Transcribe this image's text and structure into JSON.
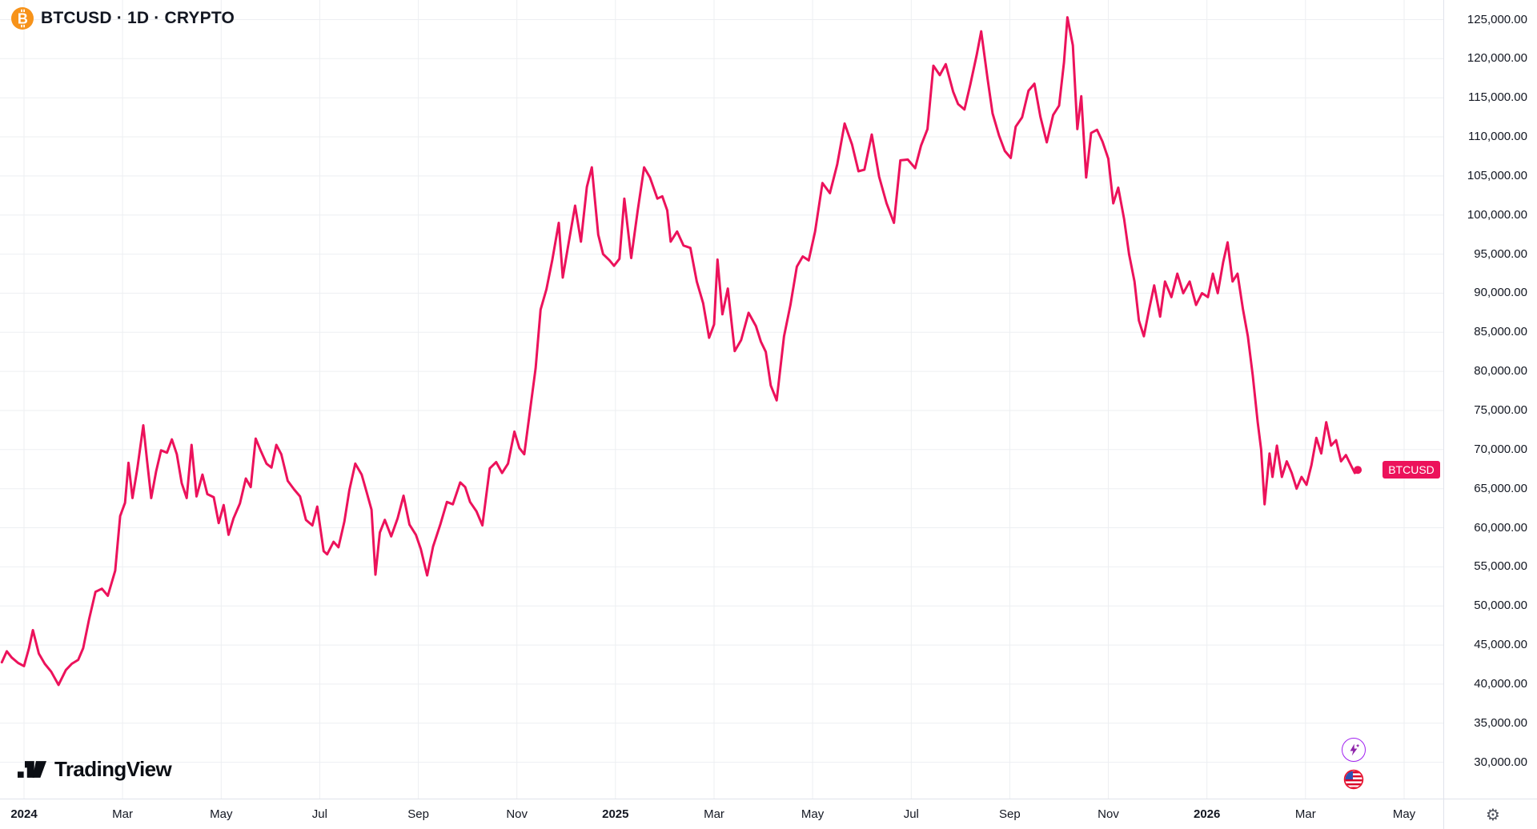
{
  "header": {
    "symbol_title": "BTCUSD · 1D · CRYPTO"
  },
  "logo": {
    "text": "TradingView"
  },
  "icons": {
    "bitcoin": "bitcoin-icon",
    "ai_sparkle": "lightning-sparkle-icon",
    "flag": "us-flag-icon",
    "gear": "gear-icon",
    "gear_glyph": "⚙"
  },
  "colors": {
    "line": "#EC125B",
    "grid": "#EDEFF2",
    "axis_border": "#E0E3EB",
    "text": "#131722",
    "bitcoin_orange": "#F7931A",
    "badge_text": "#FFFFFF",
    "sparkle_purple": "#8E24AA",
    "flag_red": "#E8112D"
  },
  "chart_data": {
    "type": "line",
    "title": "BTCUSD · 1D · CRYPTO",
    "symbol": "BTCUSD",
    "interval": "1D",
    "market": "CRYPTO",
    "x_unit": "months since Jan 2024",
    "grid": true,
    "ylim": [
      30000,
      125000
    ],
    "y_ticks": [
      {
        "value": 125000,
        "label": "125,000.00"
      },
      {
        "value": 120000,
        "label": "120,000.00"
      },
      {
        "value": 115000,
        "label": "115,000.00"
      },
      {
        "value": 110000,
        "label": "110,000.00"
      },
      {
        "value": 105000,
        "label": "105,000.00"
      },
      {
        "value": 100000,
        "label": "100,000.00"
      },
      {
        "value": 95000,
        "label": "95,000.00"
      },
      {
        "value": 90000,
        "label": "90,000.00"
      },
      {
        "value": 85000,
        "label": "85,000.00"
      },
      {
        "value": 80000,
        "label": "80,000.00"
      },
      {
        "value": 75000,
        "label": "75,000.00"
      },
      {
        "value": 70000,
        "label": "70,000.00"
      },
      {
        "value": 65000,
        "label": "65,000.00"
      },
      {
        "value": 60000,
        "label": "60,000.00"
      },
      {
        "value": 55000,
        "label": "55,000.00"
      },
      {
        "value": 50000,
        "label": "50,000.00"
      },
      {
        "value": 45000,
        "label": "45,000.00"
      },
      {
        "value": 40000,
        "label": "40,000.00"
      },
      {
        "value": 35000,
        "label": "35,000.00"
      },
      {
        "value": 30000,
        "label": "30,000.00"
      }
    ],
    "x_ticks": [
      {
        "m": 0,
        "label": "2024",
        "year": true
      },
      {
        "m": 2,
        "label": "Mar"
      },
      {
        "m": 4,
        "label": "May"
      },
      {
        "m": 6,
        "label": "Jul"
      },
      {
        "m": 8,
        "label": "Sep"
      },
      {
        "m": 10,
        "label": "Nov"
      },
      {
        "m": 12,
        "label": "2025",
        "year": true
      },
      {
        "m": 14,
        "label": "Mar"
      },
      {
        "m": 16,
        "label": "May"
      },
      {
        "m": 18,
        "label": "Jul"
      },
      {
        "m": 20,
        "label": "Sep"
      },
      {
        "m": 22,
        "label": "Nov"
      },
      {
        "m": 24,
        "label": "2026",
        "year": true
      },
      {
        "m": 26,
        "label": "Mar"
      },
      {
        "m": 28,
        "label": "May"
      }
    ],
    "series": [
      {
        "name": "BTCUSD",
        "color": "#EC125B",
        "points": [
          [
            -0.45,
            42800
          ],
          [
            -0.35,
            44200
          ],
          [
            -0.25,
            43400
          ],
          [
            -0.12,
            42700
          ],
          [
            0,
            42300
          ],
          [
            0.1,
            44600
          ],
          [
            0.18,
            46900
          ],
          [
            0.3,
            43900
          ],
          [
            0.42,
            42600
          ],
          [
            0.55,
            41600
          ],
          [
            0.7,
            39900
          ],
          [
            0.85,
            41800
          ],
          [
            0.97,
            42600
          ],
          [
            1.1,
            43100
          ],
          [
            1.2,
            44600
          ],
          [
            1.32,
            48300
          ],
          [
            1.45,
            51800
          ],
          [
            1.58,
            52200
          ],
          [
            1.7,
            51300
          ],
          [
            1.85,
            54500
          ],
          [
            1.95,
            61500
          ],
          [
            2.05,
            63200
          ],
          [
            2.12,
            68300
          ],
          [
            2.2,
            63800
          ],
          [
            2.3,
            67600
          ],
          [
            2.42,
            73100
          ],
          [
            2.5,
            68400
          ],
          [
            2.58,
            63800
          ],
          [
            2.68,
            67200
          ],
          [
            2.78,
            69900
          ],
          [
            2.9,
            69600
          ],
          [
            3.0,
            71300
          ],
          [
            3.1,
            69400
          ],
          [
            3.2,
            65700
          ],
          [
            3.3,
            63800
          ],
          [
            3.4,
            70600
          ],
          [
            3.5,
            64000
          ],
          [
            3.62,
            66800
          ],
          [
            3.72,
            64300
          ],
          [
            3.85,
            63900
          ],
          [
            3.95,
            60600
          ],
          [
            4.05,
            62900
          ],
          [
            4.15,
            59100
          ],
          [
            4.25,
            61200
          ],
          [
            4.38,
            63100
          ],
          [
            4.5,
            66300
          ],
          [
            4.6,
            65200
          ],
          [
            4.7,
            71400
          ],
          [
            4.8,
            69900
          ],
          [
            4.92,
            68200
          ],
          [
            5.02,
            67700
          ],
          [
            5.12,
            70600
          ],
          [
            5.22,
            69400
          ],
          [
            5.35,
            66000
          ],
          [
            5.48,
            64900
          ],
          [
            5.6,
            64000
          ],
          [
            5.72,
            61000
          ],
          [
            5.85,
            60300
          ],
          [
            5.95,
            62700
          ],
          [
            6.08,
            57000
          ],
          [
            6.15,
            56600
          ],
          [
            6.28,
            58200
          ],
          [
            6.38,
            57500
          ],
          [
            6.5,
            60800
          ],
          [
            6.6,
            64800
          ],
          [
            6.72,
            68200
          ],
          [
            6.85,
            66800
          ],
          [
            6.95,
            64600
          ],
          [
            7.05,
            62300
          ],
          [
            7.13,
            54000
          ],
          [
            7.22,
            59400
          ],
          [
            7.32,
            61000
          ],
          [
            7.45,
            58900
          ],
          [
            7.58,
            61200
          ],
          [
            7.7,
            64100
          ],
          [
            7.82,
            60400
          ],
          [
            7.95,
            59100
          ],
          [
            8.05,
            57300
          ],
          [
            8.18,
            53900
          ],
          [
            8.3,
            57600
          ],
          [
            8.45,
            60500
          ],
          [
            8.58,
            63300
          ],
          [
            8.7,
            63000
          ],
          [
            8.85,
            65800
          ],
          [
            8.95,
            65200
          ],
          [
            9.05,
            63300
          ],
          [
            9.18,
            62100
          ],
          [
            9.3,
            60300
          ],
          [
            9.45,
            67600
          ],
          [
            9.58,
            68400
          ],
          [
            9.7,
            67000
          ],
          [
            9.82,
            68200
          ],
          [
            9.95,
            72300
          ],
          [
            10.05,
            70200
          ],
          [
            10.15,
            69400
          ],
          [
            10.28,
            75600
          ],
          [
            10.38,
            80400
          ],
          [
            10.48,
            87900
          ],
          [
            10.6,
            90500
          ],
          [
            10.72,
            94300
          ],
          [
            10.85,
            99000
          ],
          [
            10.93,
            92000
          ],
          [
            11.05,
            96400
          ],
          [
            11.18,
            101200
          ],
          [
            11.3,
            96600
          ],
          [
            11.42,
            103600
          ],
          [
            11.52,
            106100
          ],
          [
            11.65,
            97500
          ],
          [
            11.75,
            95000
          ],
          [
            11.88,
            94200
          ],
          [
            11.97,
            93500
          ],
          [
            12.08,
            94400
          ],
          [
            12.18,
            102100
          ],
          [
            12.32,
            94500
          ],
          [
            12.45,
            100500
          ],
          [
            12.58,
            106100
          ],
          [
            12.7,
            104800
          ],
          [
            12.85,
            102100
          ],
          [
            12.95,
            102400
          ],
          [
            13.05,
            100600
          ],
          [
            13.12,
            96600
          ],
          [
            13.25,
            97900
          ],
          [
            13.38,
            96100
          ],
          [
            13.52,
            95800
          ],
          [
            13.65,
            91500
          ],
          [
            13.78,
            88700
          ],
          [
            13.9,
            84300
          ],
          [
            14.0,
            86000
          ],
          [
            14.07,
            94300
          ],
          [
            14.17,
            87300
          ],
          [
            14.28,
            90600
          ],
          [
            14.42,
            82600
          ],
          [
            14.55,
            84000
          ],
          [
            14.7,
            87500
          ],
          [
            14.85,
            85800
          ],
          [
            14.95,
            83800
          ],
          [
            15.05,
            82500
          ],
          [
            15.15,
            78200
          ],
          [
            15.27,
            76300
          ],
          [
            15.42,
            84500
          ],
          [
            15.55,
            88500
          ],
          [
            15.68,
            93400
          ],
          [
            15.8,
            94700
          ],
          [
            15.92,
            94200
          ],
          [
            16.05,
            97900
          ],
          [
            16.2,
            104100
          ],
          [
            16.35,
            102800
          ],
          [
            16.5,
            106500
          ],
          [
            16.65,
            111700
          ],
          [
            16.8,
            109000
          ],
          [
            16.93,
            105600
          ],
          [
            17.05,
            105800
          ],
          [
            17.2,
            110300
          ],
          [
            17.35,
            104900
          ],
          [
            17.5,
            101500
          ],
          [
            17.65,
            99000
          ],
          [
            17.78,
            107000
          ],
          [
            17.93,
            107100
          ],
          [
            18.08,
            106000
          ],
          [
            18.2,
            108900
          ],
          [
            18.33,
            111000
          ],
          [
            18.45,
            119100
          ],
          [
            18.58,
            117900
          ],
          [
            18.7,
            119300
          ],
          [
            18.85,
            115800
          ],
          [
            18.95,
            114200
          ],
          [
            19.08,
            113500
          ],
          [
            19.2,
            116700
          ],
          [
            19.33,
            120500
          ],
          [
            19.42,
            123500
          ],
          [
            19.55,
            117400
          ],
          [
            19.65,
            113000
          ],
          [
            19.78,
            110200
          ],
          [
            19.9,
            108200
          ],
          [
            20.02,
            107300
          ],
          [
            20.12,
            111300
          ],
          [
            20.25,
            112500
          ],
          [
            20.38,
            115900
          ],
          [
            20.5,
            116800
          ],
          [
            20.62,
            112600
          ],
          [
            20.75,
            109300
          ],
          [
            20.88,
            112800
          ],
          [
            21.0,
            114000
          ],
          [
            21.1,
            119500
          ],
          [
            21.17,
            125300
          ],
          [
            21.28,
            121700
          ],
          [
            21.37,
            111000
          ],
          [
            21.45,
            115200
          ],
          [
            21.55,
            104800
          ],
          [
            21.65,
            110500
          ],
          [
            21.77,
            110900
          ],
          [
            21.88,
            109400
          ],
          [
            22.0,
            107200
          ],
          [
            22.1,
            101500
          ],
          [
            22.2,
            103500
          ],
          [
            22.32,
            99500
          ],
          [
            22.42,
            95000
          ],
          [
            22.53,
            91500
          ],
          [
            22.62,
            86500
          ],
          [
            22.72,
            84500
          ],
          [
            22.83,
            88000
          ],
          [
            22.93,
            91000
          ],
          [
            23.05,
            87000
          ],
          [
            23.15,
            91500
          ],
          [
            23.28,
            89500
          ],
          [
            23.4,
            92500
          ],
          [
            23.52,
            90000
          ],
          [
            23.65,
            91500
          ],
          [
            23.78,
            88500
          ],
          [
            23.9,
            90000
          ],
          [
            24.02,
            89500
          ],
          [
            24.12,
            92500
          ],
          [
            24.22,
            90000
          ],
          [
            24.33,
            94000
          ],
          [
            24.42,
            96500
          ],
          [
            24.52,
            91500
          ],
          [
            24.62,
            92500
          ],
          [
            24.73,
            88000
          ],
          [
            24.83,
            84500
          ],
          [
            24.93,
            79500
          ],
          [
            25.03,
            73500
          ],
          [
            25.1,
            70000
          ],
          [
            25.17,
            63000
          ],
          [
            25.27,
            69500
          ],
          [
            25.33,
            66500
          ],
          [
            25.42,
            70500
          ],
          [
            25.52,
            66500
          ],
          [
            25.62,
            68500
          ],
          [
            25.72,
            67000
          ],
          [
            25.82,
            65000
          ],
          [
            25.92,
            66500
          ],
          [
            26.02,
            65500
          ],
          [
            26.12,
            68000
          ],
          [
            26.22,
            71500
          ],
          [
            26.32,
            69500
          ],
          [
            26.42,
            73500
          ],
          [
            26.52,
            70500
          ],
          [
            26.62,
            71200
          ],
          [
            26.72,
            68500
          ],
          [
            26.82,
            69300
          ],
          [
            26.92,
            68000
          ],
          [
            27.0,
            67000
          ],
          [
            27.06,
            67400
          ]
        ]
      }
    ],
    "last_price_label": {
      "text": "BTCUSD",
      "value": 67400
    }
  }
}
